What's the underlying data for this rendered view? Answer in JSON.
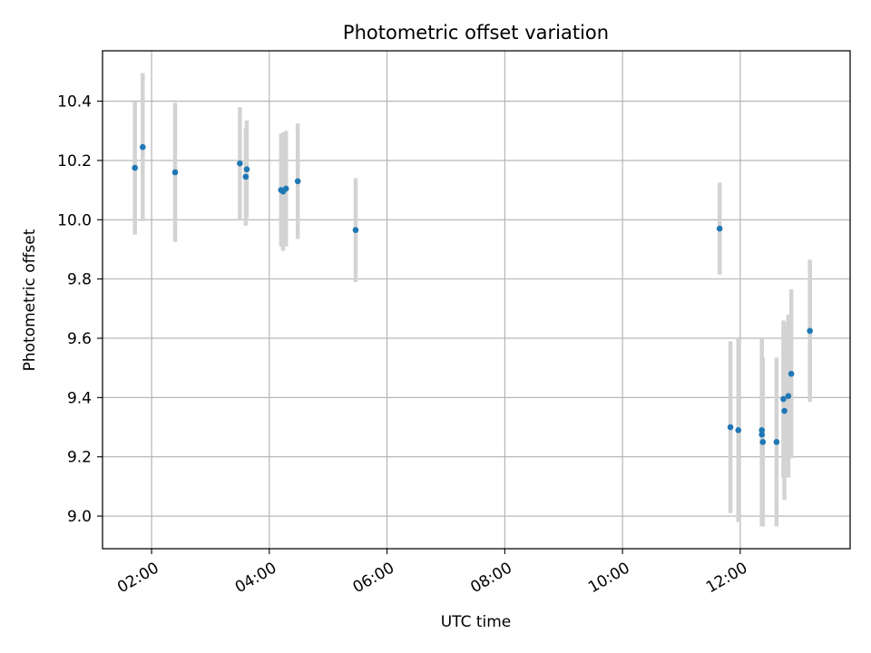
{
  "chart_data": {
    "type": "scatter",
    "title": "Photometric offset variation",
    "xlabel": "UTC time",
    "ylabel": "Photometric offset",
    "x_format": "HH:MM",
    "xlim": [
      "01:10",
      "13:52"
    ],
    "ylim": [
      8.89,
      10.57
    ],
    "x_ticks": [
      "02:00",
      "04:00",
      "06:00",
      "08:00",
      "10:00",
      "12:00"
    ],
    "y_ticks": [
      9.0,
      9.2,
      9.4,
      9.6,
      9.8,
      10.0,
      10.2,
      10.4
    ],
    "y_tick_labels": [
      "9.0",
      "9.2",
      "9.4",
      "9.6",
      "9.8",
      "10.0",
      "10.2",
      "10.4"
    ],
    "grid": true,
    "colors": {
      "points": "#1f77b4",
      "error_bars": "#d3d3d3",
      "grid": "#b0b0b0"
    },
    "series": [
      {
        "x": [
          "01:43",
          "01:51",
          "02:24",
          "03:30",
          "03:36",
          "03:37",
          "04:12",
          "04:14",
          "04:17",
          "04:29",
          "05:28",
          "11:39",
          "11:50",
          "11:58",
          "12:22",
          "12:22",
          "12:23",
          "12:37",
          "12:44",
          "12:45",
          "12:49",
          "12:52",
          "13:11"
        ],
        "y": [
          10.175,
          10.245,
          10.16,
          10.19,
          10.145,
          10.17,
          10.1,
          10.095,
          10.105,
          10.13,
          9.965,
          9.97,
          9.3,
          9.29,
          9.29,
          9.275,
          9.25,
          9.25,
          9.395,
          9.355,
          9.405,
          9.48,
          9.625
        ],
        "yerr": [
          0.225,
          0.25,
          0.235,
          0.19,
          0.165,
          0.165,
          0.19,
          0.2,
          0.195,
          0.195,
          0.175,
          0.155,
          0.29,
          0.31,
          0.31,
          0.31,
          0.285,
          0.285,
          0.265,
          0.3,
          0.275,
          0.285,
          0.24
        ]
      }
    ]
  }
}
